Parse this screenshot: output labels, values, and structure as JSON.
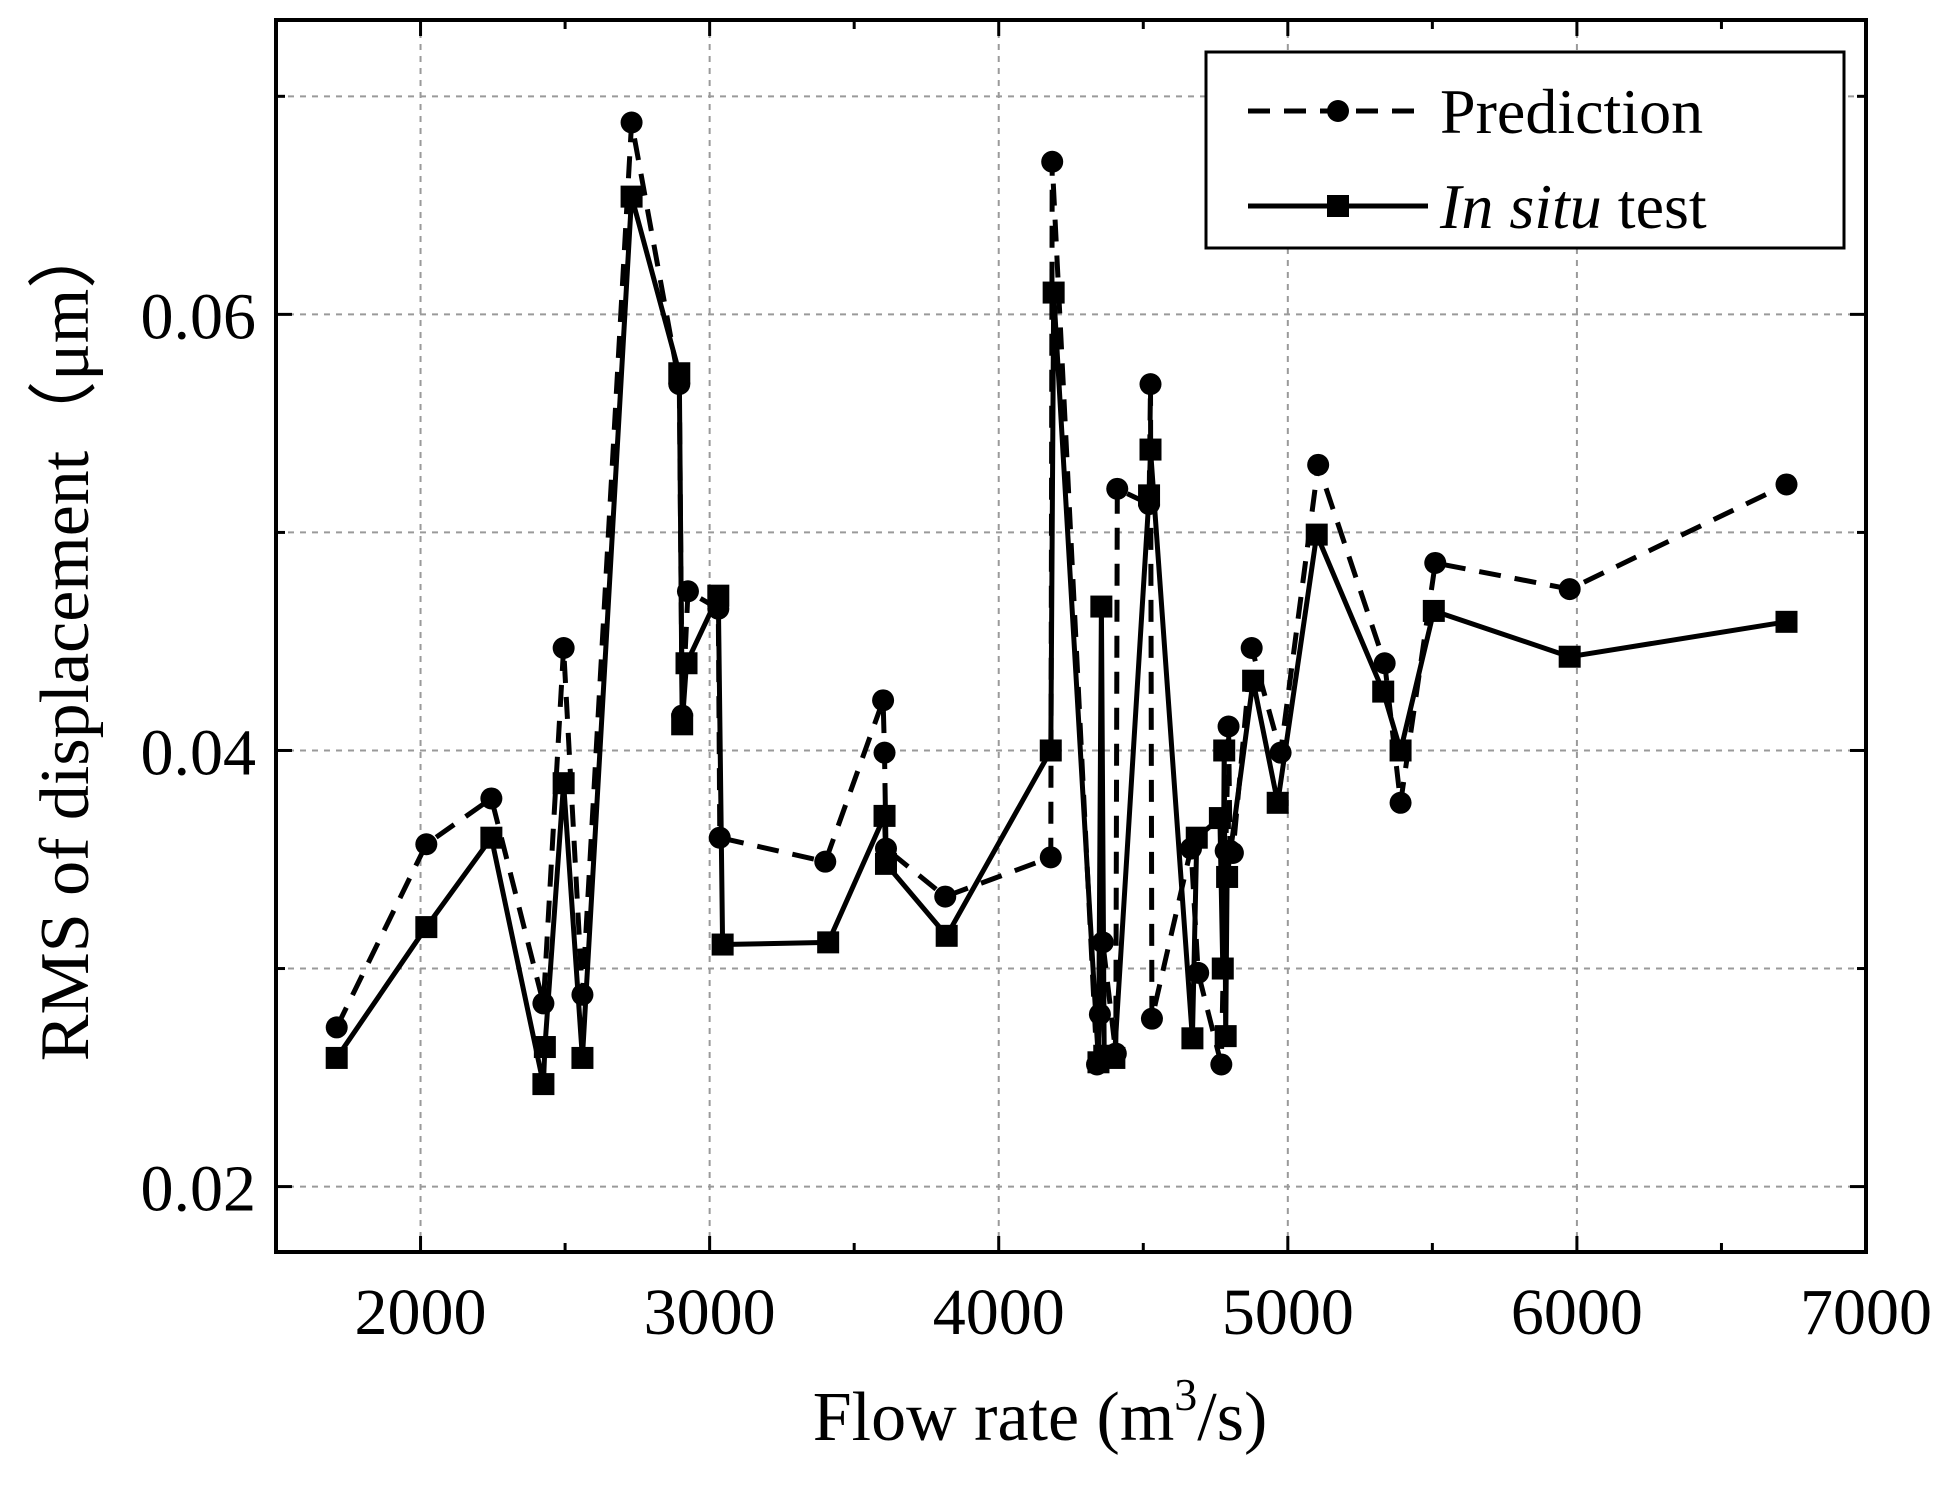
{
  "chart_data": {
    "type": "line",
    "xlabel": "Flow rate (m³/s)",
    "xlabel_main": "Flow rate (m",
    "xlabel_sup": "3",
    "xlabel_end": "/s)",
    "ylabel": "RMS of displacement（μm）",
    "xlim": [
      1500,
      7000
    ],
    "ylim": [
      0.017,
      0.0735
    ],
    "x_ticks": [
      2000,
      3000,
      4000,
      5000,
      6000,
      7000
    ],
    "x_tick_labels": [
      "2000",
      "3000",
      "4000",
      "5000",
      "6000",
      "7000"
    ],
    "y_ticks": [
      0.02,
      0.04,
      0.06
    ],
    "y_tick_labels": [
      "0.02",
      "0.04",
      "0.06"
    ],
    "grid": true,
    "legend_position": "top-right",
    "series": [
      {
        "name": "Prediction",
        "style": "dashed",
        "marker": "circle",
        "x": [
          1710,
          2020,
          2245,
          2425,
          2495,
          2560,
          2730,
          2895,
          2905,
          2925,
          3030,
          3035,
          3400,
          3600,
          3605,
          3610,
          3815,
          4180,
          4185,
          4340,
          4350,
          4360,
          4405,
          4410,
          4520,
          4525,
          4530,
          4665,
          4690,
          4770,
          4785,
          4795,
          4800,
          4810,
          4875,
          4975,
          5105,
          5335,
          5390,
          5510,
          5975,
          6725
        ],
        "values": [
          0.0273,
          0.0357,
          0.0378,
          0.0284,
          0.0447,
          0.0288,
          0.0688,
          0.0568,
          0.0416,
          0.0473,
          0.0465,
          0.036,
          0.0349,
          0.0423,
          0.0399,
          0.0355,
          0.0333,
          0.0351,
          0.067,
          0.0256,
          0.0279,
          0.0312,
          0.0261,
          0.052,
          0.0513,
          0.0568,
          0.0277,
          0.0355,
          0.0298,
          0.0256,
          0.0354,
          0.0411,
          0.0354,
          0.0353,
          0.0447,
          0.0399,
          0.0531,
          0.044,
          0.0376,
          0.0486,
          0.0474,
          0.0522
        ]
      },
      {
        "name": "In situ test",
        "name_italic": "In situ",
        "name_rest": " test",
        "style": "solid",
        "marker": "square",
        "x": [
          1710,
          2020,
          2245,
          2425,
          2430,
          2495,
          2560,
          2730,
          2895,
          2905,
          2920,
          3030,
          3045,
          3410,
          3605,
          3610,
          3820,
          4180,
          4190,
          4345,
          4355,
          4365,
          4400,
          4520,
          4525,
          4670,
          4685,
          4765,
          4775,
          4780,
          4785,
          4790,
          4880,
          4965,
          5100,
          5330,
          5390,
          5505,
          5975,
          6725
        ],
        "values": [
          0.0259,
          0.0319,
          0.036,
          0.0247,
          0.0264,
          0.0385,
          0.0259,
          0.0654,
          0.0573,
          0.0412,
          0.044,
          0.0471,
          0.0311,
          0.0312,
          0.037,
          0.0348,
          0.0315,
          0.04,
          0.061,
          0.0257,
          0.0466,
          0.026,
          0.0259,
          0.0517,
          0.0538,
          0.0268,
          0.036,
          0.0369,
          0.03,
          0.04,
          0.0269,
          0.0342,
          0.0432,
          0.0376,
          0.0499,
          0.0427,
          0.04,
          0.0464,
          0.0443,
          0.0459
        ]
      }
    ]
  }
}
